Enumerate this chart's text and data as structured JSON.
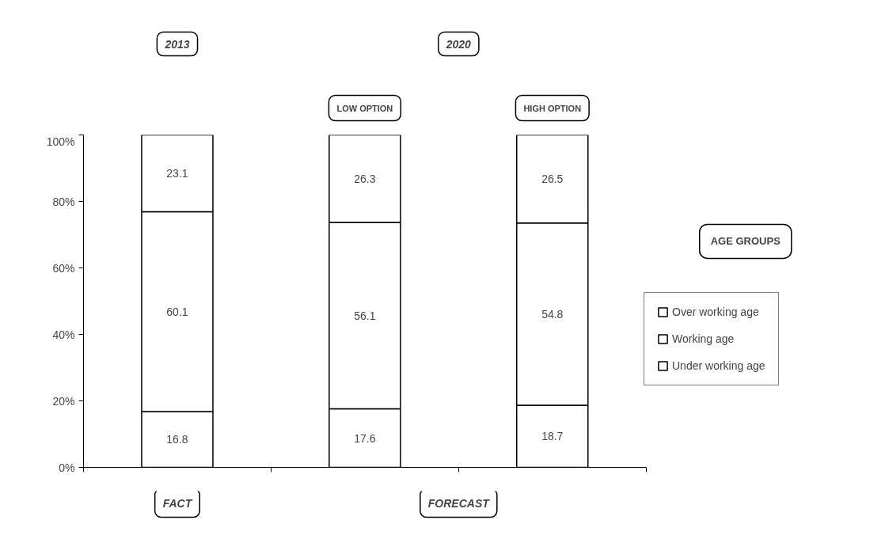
{
  "chart_data": {
    "type": "bar",
    "stacked": true,
    "categories": [
      null,
      null,
      null
    ],
    "series": [
      {
        "name": "Under working age",
        "color": "#ffffff",
        "values": [
          16.8,
          17.6,
          18.7
        ]
      },
      {
        "name": "Working age",
        "color": "#ffffff",
        "values": [
          60.1,
          56.1,
          54.8
        ]
      },
      {
        "name": "Over working age",
        "color": "#ffffff",
        "values": [
          23.1,
          26.3,
          26.5
        ]
      }
    ],
    "ylim": [
      0,
      100
    ],
    "yticks": [
      {
        "value": 0,
        "label": "0%"
      },
      {
        "value": 20,
        "label": "20%"
      },
      {
        "value": 40,
        "label": "40%"
      },
      {
        "value": 60,
        "label": "60%"
      },
      {
        "value": 80,
        "label": "80%"
      },
      {
        "value": 100,
        "label": "100%"
      }
    ],
    "data_labels": true,
    "legend": "right",
    "legend_title": "AGE GROUPS",
    "grid": false,
    "annotations": [
      "2013",
      "2020",
      "LOW OPTION",
      "HIGH OPTION",
      "FACT",
      "FORECAST"
    ]
  }
}
